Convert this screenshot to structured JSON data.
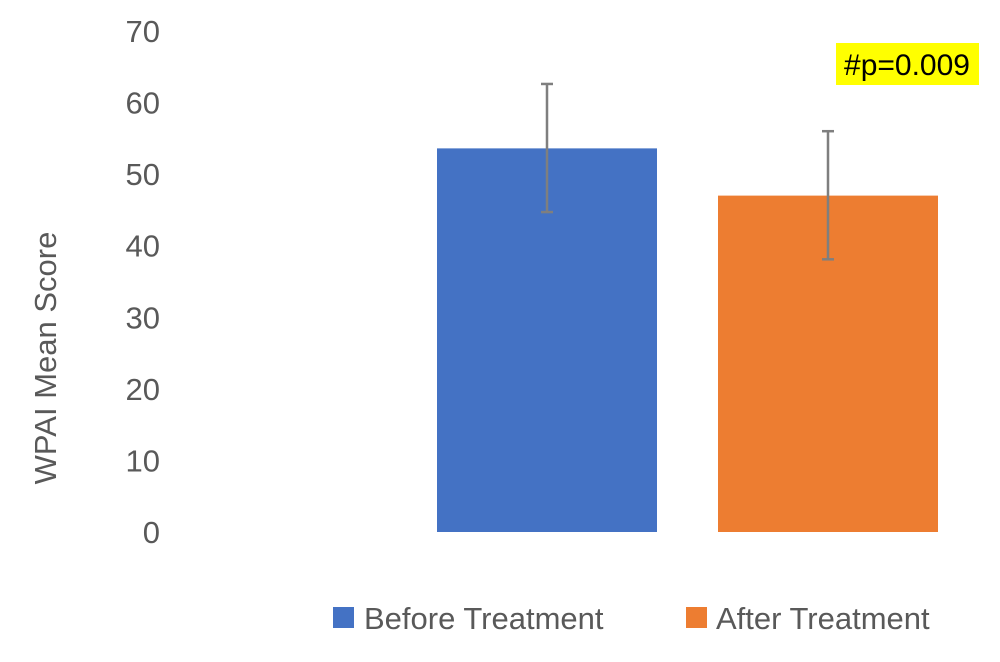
{
  "chart_data": {
    "type": "bar",
    "title": "",
    "xlabel": "",
    "ylabel": "WPAI Mean Score",
    "ylim": [
      0,
      70
    ],
    "yticks": [
      0,
      10,
      20,
      30,
      40,
      50,
      60,
      70
    ],
    "grid": false,
    "legend_position": "bottom",
    "series": [
      {
        "name": "Before Treatment",
        "value": 53.6,
        "error_low": 44.7,
        "error_high": 62.6,
        "color": "#4472C4"
      },
      {
        "name": "After Treatment",
        "value": 47.0,
        "error_low": 38.1,
        "error_high": 56.0,
        "color": "#ED7D31"
      }
    ],
    "annotation": {
      "text": "#p=0.009",
      "highlight_color": "#FFFF00"
    },
    "error_bar_color": "#7F7F7F"
  }
}
